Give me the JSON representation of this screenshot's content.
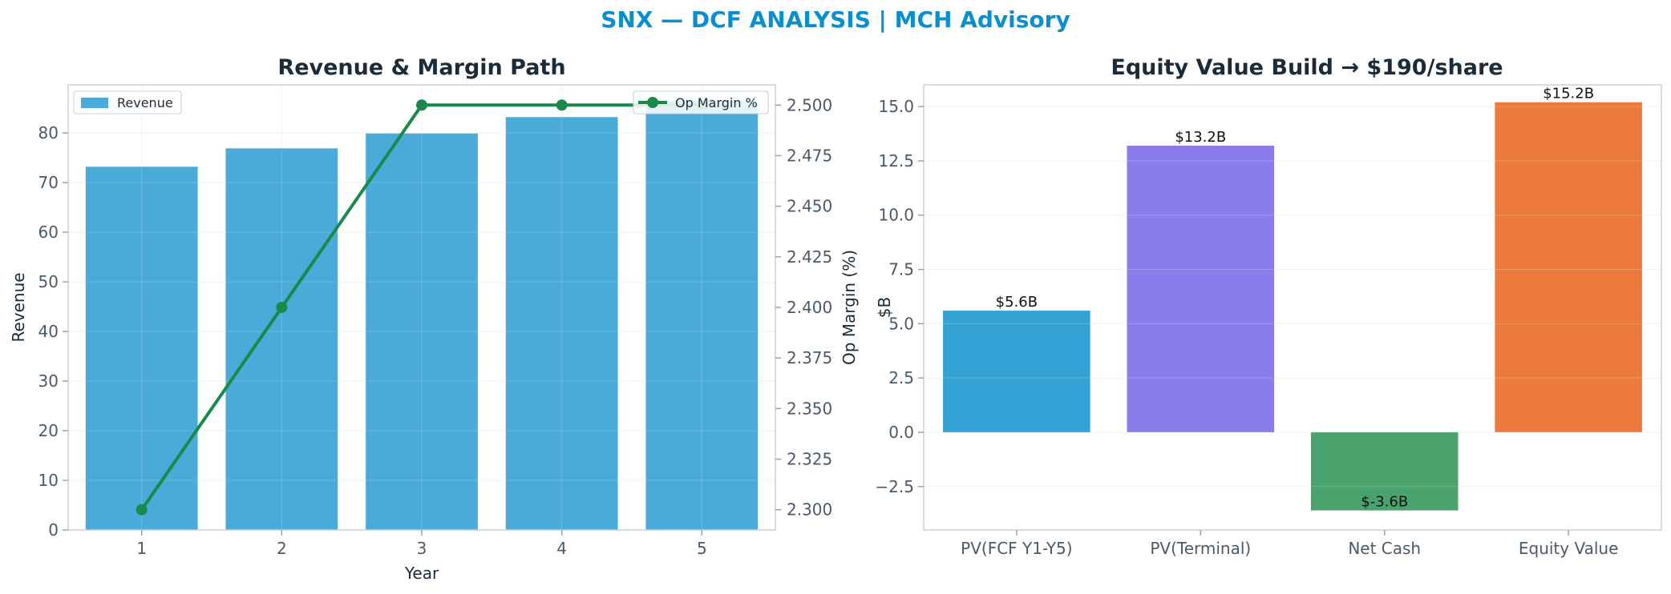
{
  "suptitle": "SNX — DCF ANALYSIS | MCH Advisory",
  "colors": {
    "suptitle": "#0a8fce",
    "revenue_bar": "#4aaad8",
    "margin_line": "#1a8a4a",
    "pv_fcf": "#33a2d4",
    "pv_terminal": "#8a7cea",
    "net_cash": "#4aa36c",
    "equity_value": "#ec7a3c"
  },
  "chart_data": [
    {
      "type": "bar",
      "title": "Revenue & Margin Path",
      "xlabel": "Year",
      "ylabel": "Revenue",
      "y2label": "Op Margin (%)",
      "categories": [
        "1",
        "2",
        "3",
        "4",
        "5"
      ],
      "series": [
        {
          "name": "Revenue",
          "type": "bar",
          "axis": "left",
          "values": [
            73.2,
            76.9,
            79.9,
            83.2,
            86.5
          ]
        },
        {
          "name": "Op Margin %",
          "type": "line",
          "axis": "right",
          "values": [
            2.3,
            2.4,
            2.5,
            2.5,
            2.5
          ]
        }
      ],
      "ylim": [
        0,
        89.7
      ],
      "y2lim": [
        2.29,
        2.51
      ],
      "yticks": [
        0,
        10,
        20,
        30,
        40,
        50,
        60,
        70,
        80
      ],
      "y2ticks": [
        2.3,
        2.325,
        2.35,
        2.375,
        2.4,
        2.425,
        2.45,
        2.475,
        2.5
      ],
      "y2ticklabels": [
        "2.300",
        "2.325",
        "2.350",
        "2.375",
        "2.400",
        "2.425",
        "2.450",
        "2.475",
        "2.500"
      ],
      "grid": true,
      "legend": {
        "revenue_position": "upper-left",
        "margin_position": "upper-right"
      }
    },
    {
      "type": "bar",
      "title": "Equity Value Build → $190/share",
      "ylabel": "$B",
      "categories": [
        "PV(FCF Y1-Y5)",
        "PV(Terminal)",
        "Net Cash",
        "Equity Value"
      ],
      "values": [
        5.6,
        13.2,
        -3.6,
        15.2
      ],
      "data_labels": [
        "$5.6B",
        "$13.2B",
        "$-3.6B",
        "$15.2B"
      ],
      "ylim": [
        -4.5,
        16.0
      ],
      "yticks": [
        -2.5,
        0.0,
        2.5,
        5.0,
        7.5,
        10.0,
        12.5,
        15.0
      ],
      "yticklabels": [
        "−2.5",
        "0.0",
        "2.5",
        "5.0",
        "7.5",
        "10.0",
        "12.5",
        "15.0"
      ],
      "grid": true
    }
  ]
}
